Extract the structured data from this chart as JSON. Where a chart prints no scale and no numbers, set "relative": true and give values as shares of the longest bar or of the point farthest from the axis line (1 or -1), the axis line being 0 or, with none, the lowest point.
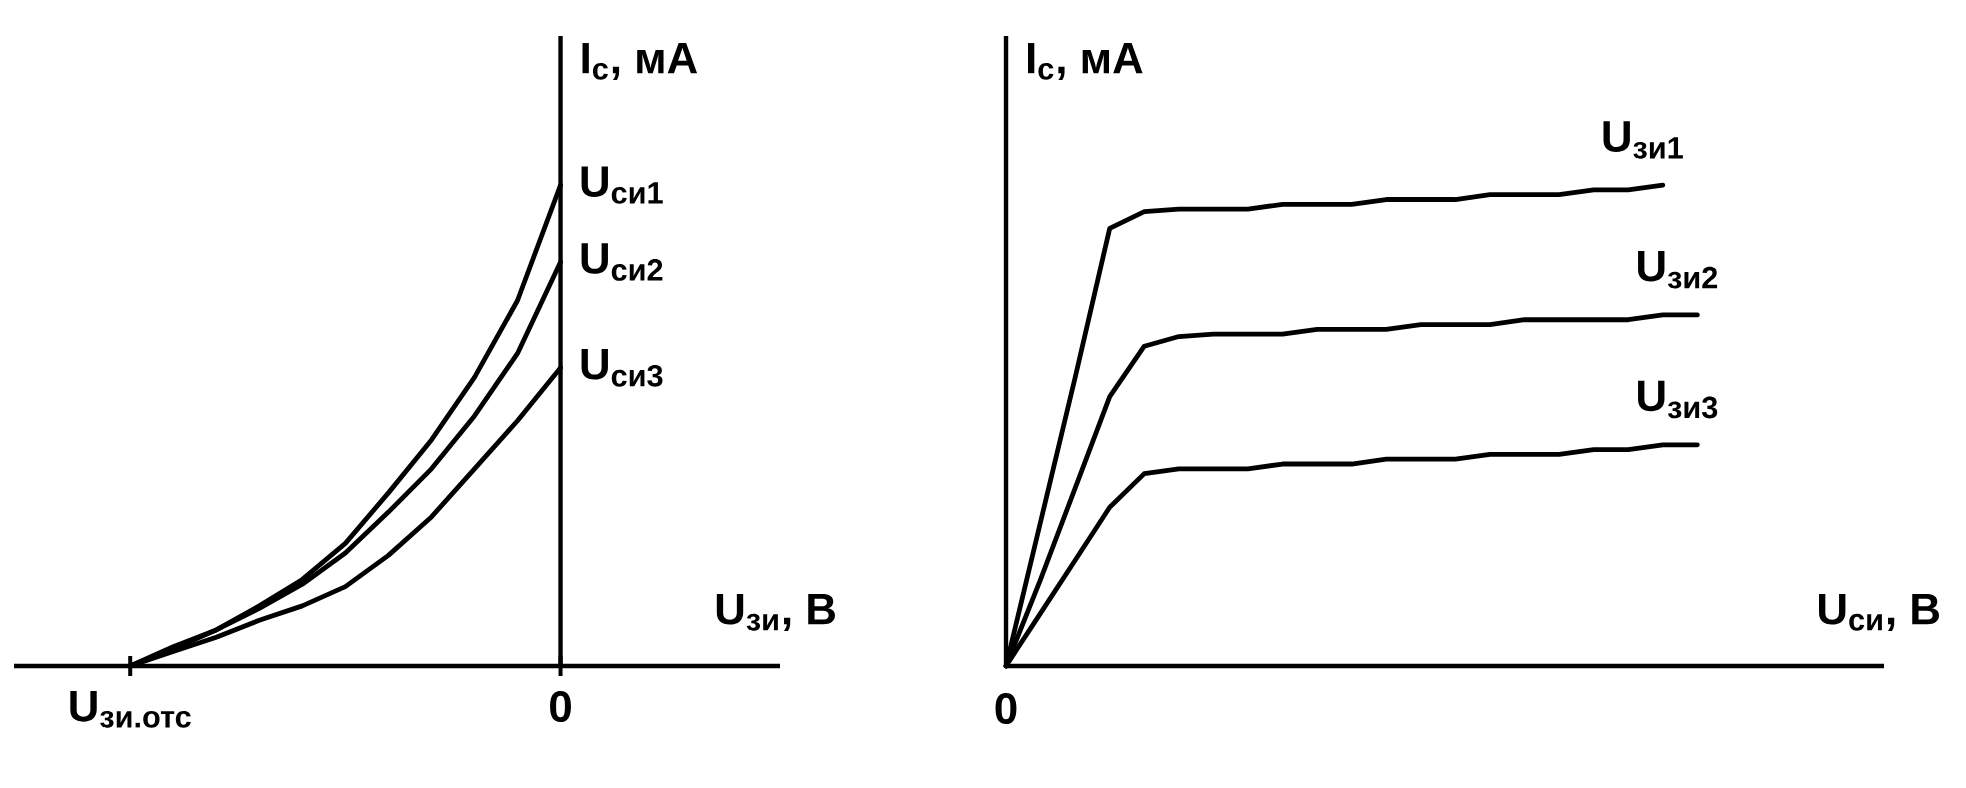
{
  "chart_data": [
    {
      "type": "line",
      "relative": true,
      "xlabel": "U$_{зи}$, В",
      "ylabel": "I$_{с}$, мА",
      "marker": "none",
      "categories": [
        "U$_{зи.отс}$",
        null,
        null,
        null,
        null,
        null,
        null,
        null,
        null,
        null,
        "0"
      ],
      "series": [
        {
          "name": "U$_{си1}$",
          "color": "#000000",
          "values": [
            0,
            0.035,
            0.075,
            0.125,
            0.18,
            0.255,
            0.36,
            0.47,
            0.6,
            0.76,
            1.0
          ]
        },
        {
          "name": "U$_{си2}$",
          "color": "#000000",
          "values": [
            0,
            0.04,
            0.075,
            0.12,
            0.17,
            0.235,
            0.32,
            0.41,
            0.52,
            0.65,
            0.84
          ]
        },
        {
          "name": "U$_{си3}$",
          "color": "#000000",
          "values": [
            0,
            0.03,
            0.06,
            0.095,
            0.125,
            0.165,
            0.23,
            0.31,
            0.41,
            0.51,
            0.62
          ]
        }
      ]
    },
    {
      "type": "line",
      "relative": true,
      "xlabel": "U$_{си}$, В",
      "ylabel": "I$_{с}$, мА",
      "marker": "none",
      "annotations": [
        "0"
      ],
      "categories": [
        null,
        null,
        null,
        null,
        null,
        null,
        null,
        null,
        null,
        null,
        null,
        null,
        null,
        null,
        null,
        null,
        null,
        null,
        null,
        null,
        null
      ],
      "series": [
        {
          "name": "U$_{зи1}$",
          "color": "#000000",
          "values": [
            0,
            0.3,
            0.6,
            0.91,
            0.945,
            0.95,
            0.95,
            0.95,
            0.96,
            0.96,
            0.96,
            0.97,
            0.97,
            0.97,
            0.98,
            0.98,
            0.98,
            0.99,
            0.99,
            1.0,
            null
          ]
        },
        {
          "name": "U$_{зи2}$",
          "color": "#000000",
          "values": [
            0,
            0.18,
            0.37,
            0.56,
            0.665,
            0.685,
            0.69,
            0.69,
            0.69,
            0.7,
            0.7,
            0.7,
            0.71,
            0.71,
            0.71,
            0.72,
            0.72,
            0.72,
            0.72,
            0.73,
            0.73
          ]
        },
        {
          "name": "U$_{зи3}$",
          "color": "#000000",
          "values": [
            0,
            0.11,
            0.22,
            0.33,
            0.4,
            0.41,
            0.41,
            0.41,
            0.42,
            0.42,
            0.42,
            0.43,
            0.43,
            0.43,
            0.44,
            0.44,
            0.44,
            0.45,
            0.45,
            0.46,
            0.46
          ]
        }
      ]
    }
  ]
}
